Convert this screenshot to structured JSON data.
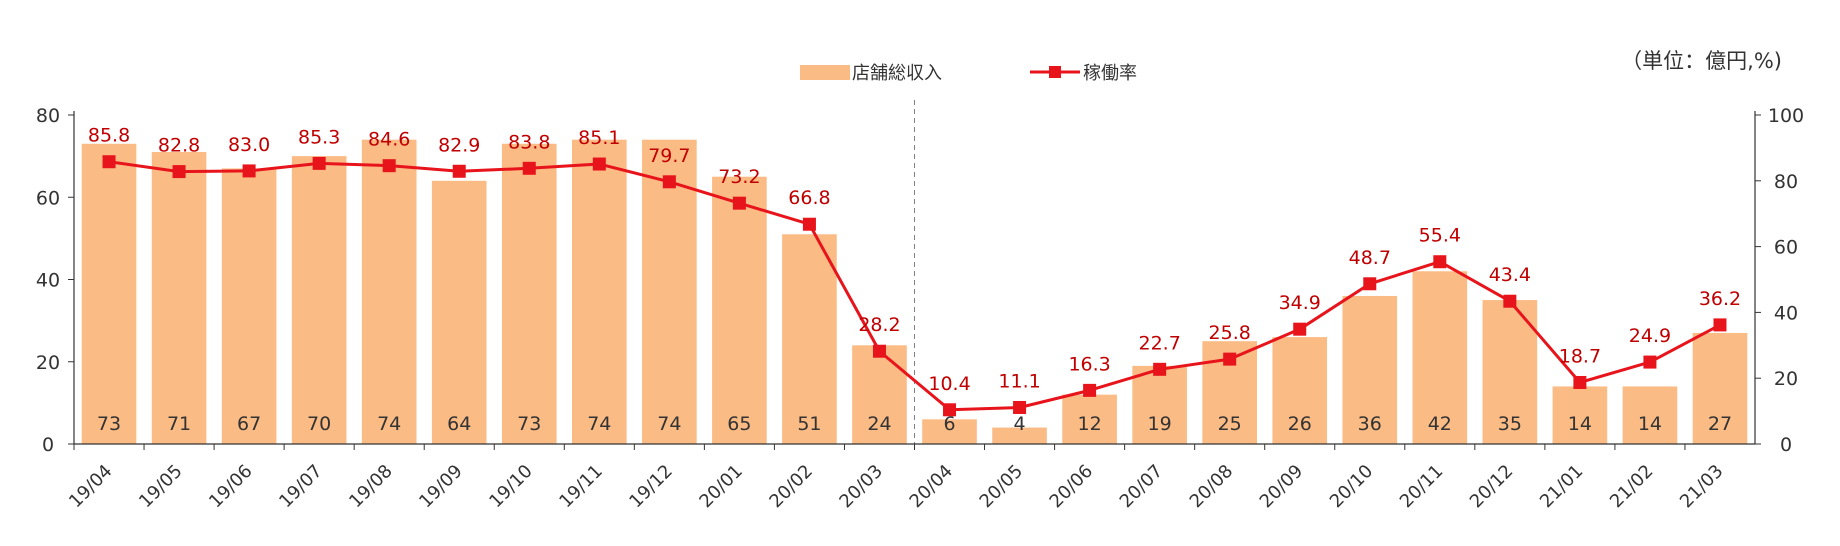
{
  "chart_data": {
    "type": "bar",
    "unit_label": "（単位：億円,%)",
    "categories": [
      "19/04",
      "19/05",
      "19/06",
      "19/07",
      "19/08",
      "19/09",
      "19/10",
      "19/11",
      "19/12",
      "20/01",
      "20/02",
      "20/03",
      "20/04",
      "20/05",
      "20/06",
      "20/07",
      "20/08",
      "20/09",
      "20/10",
      "20/11",
      "20/12",
      "21/01",
      "21/02",
      "21/03"
    ],
    "series": [
      {
        "name": "店舗総収入",
        "type": "bar",
        "axis": "left",
        "color": "#fbbb85",
        "values": [
          73,
          71,
          67,
          70,
          74,
          64,
          73,
          74,
          74,
          65,
          51,
          24,
          6,
          4,
          12,
          19,
          25,
          26,
          36,
          42,
          35,
          14,
          14,
          27
        ]
      },
      {
        "name": "稼働率",
        "type": "line",
        "axis": "right",
        "color": "#e8141b",
        "label_color": "#c00000",
        "values": [
          85.8,
          82.8,
          83.0,
          85.3,
          84.6,
          82.9,
          83.8,
          85.1,
          79.7,
          73.2,
          66.8,
          28.2,
          10.4,
          11.1,
          16.3,
          22.7,
          25.8,
          34.9,
          48.7,
          55.4,
          43.4,
          18.7,
          24.9,
          36.2
        ]
      }
    ],
    "y_left": {
      "range": [
        0,
        80
      ],
      "ticks": [
        "0",
        "20",
        "40",
        "60",
        "80"
      ]
    },
    "y_right": {
      "range": [
        0,
        100
      ],
      "ticks": [
        "0",
        "20",
        "40",
        "60",
        "80",
        "100"
      ]
    },
    "divider_after_category": "20/03",
    "legend_position": "top-center",
    "grid": false
  }
}
